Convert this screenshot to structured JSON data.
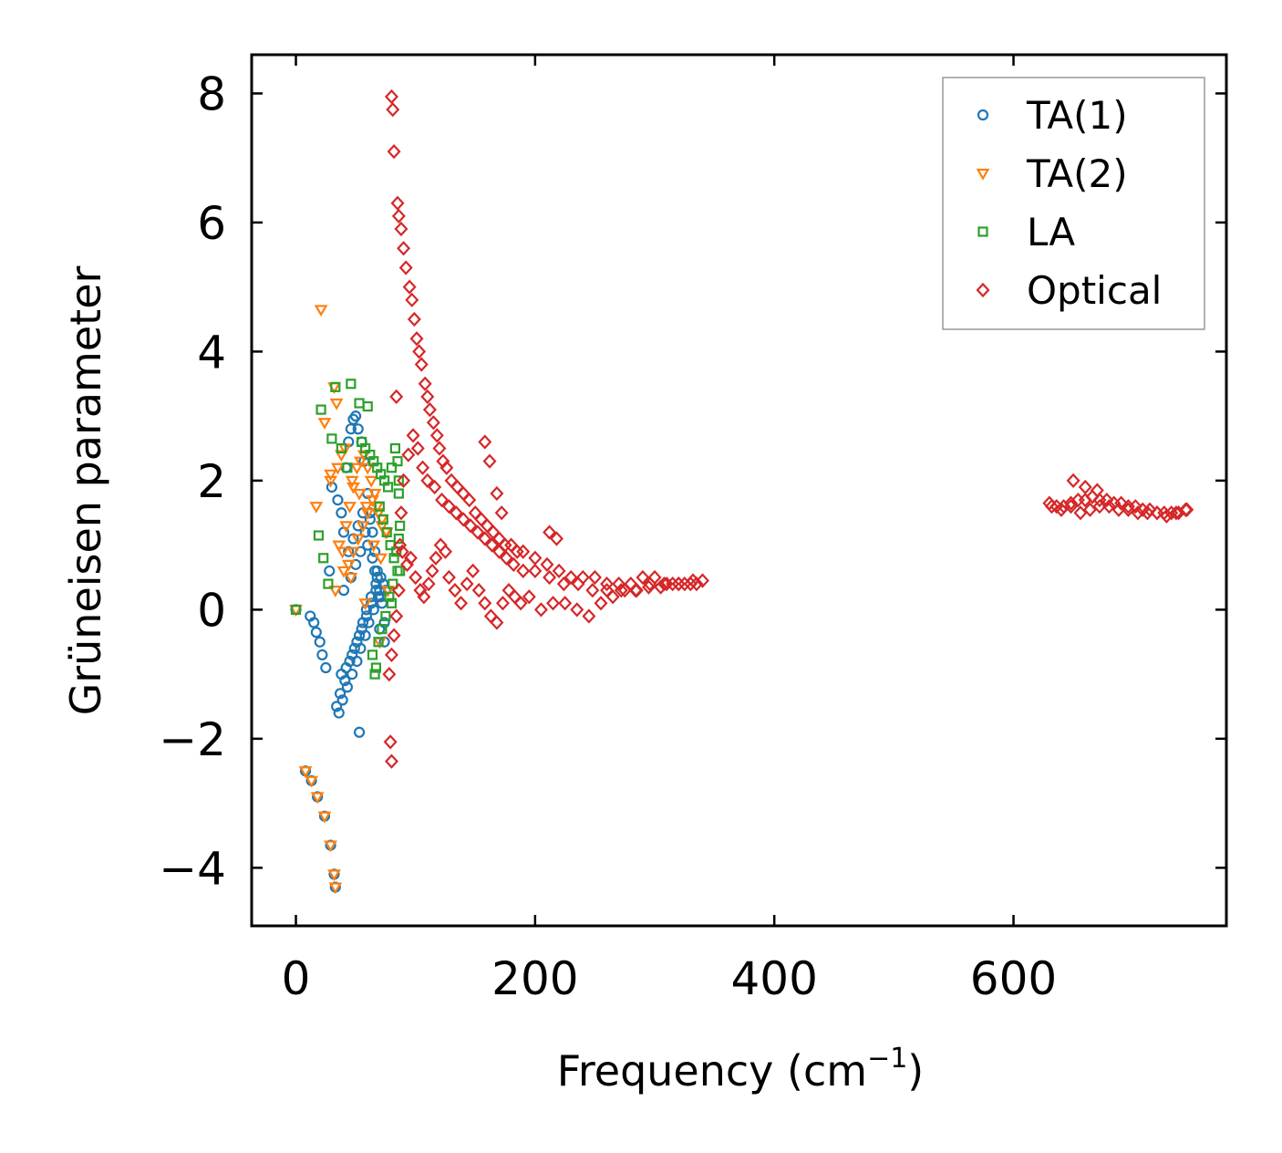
{
  "chart_data": {
    "type": "scatter",
    "title": "",
    "xlabel": "Frequency (cm",
    "xlabel_sup": "−1",
    "xlabel_close": ")",
    "ylabel": "Grüneisen parameter",
    "xlim": [
      -37,
      778
    ],
    "ylim": [
      -4.9,
      8.6
    ],
    "xticks": [
      0,
      200,
      400,
      600
    ],
    "xtick_labels": [
      "0",
      "200",
      "400",
      "600"
    ],
    "yticks": [
      -4,
      -2,
      0,
      2,
      4,
      6,
      8
    ],
    "ytick_labels": [
      "−4",
      "−2",
      "0",
      "2",
      "4",
      "6",
      "8"
    ],
    "legend_position": "top-right",
    "series": [
      {
        "name": "TA(1)",
        "marker": "circle",
        "color": "#1f77b4",
        "x": [
          0,
          8,
          13,
          18,
          24,
          29,
          32,
          33,
          12,
          15,
          17,
          20,
          22,
          25,
          28,
          30,
          35,
          38,
          40,
          42,
          44,
          46,
          48,
          50,
          52,
          55,
          57,
          60,
          62,
          64,
          66,
          68,
          70,
          72,
          74,
          34,
          37,
          41,
          45,
          49,
          53,
          56,
          59,
          63,
          67,
          71,
          75,
          36,
          39,
          43,
          47,
          51,
          54,
          58,
          61,
          65,
          69,
          73,
          44,
          48,
          52,
          56,
          60,
          64,
          68,
          40,
          46,
          50,
          54,
          58,
          62,
          66,
          70,
          74,
          38,
          42,
          47,
          51,
          55,
          59,
          63,
          67,
          71,
          53
        ],
        "y": [
          0.0,
          -2.5,
          -2.65,
          -2.9,
          -3.2,
          -3.65,
          -4.1,
          -4.3,
          -0.1,
          -0.2,
          -0.35,
          -0.5,
          -0.7,
          -0.9,
          0.6,
          1.9,
          1.7,
          1.5,
          1.2,
          2.2,
          2.6,
          2.8,
          2.95,
          3.0,
          2.8,
          2.6,
          2.3,
          1.8,
          1.5,
          1.2,
          0.9,
          0.6,
          0.3,
          0.1,
          -0.2,
          -1.5,
          -1.3,
          -1.1,
          -0.8,
          -0.6,
          -0.4,
          -0.2,
          0.0,
          0.2,
          0.4,
          0.5,
          0.3,
          -1.6,
          -1.4,
          -1.2,
          -1.0,
          -0.8,
          -0.6,
          -0.4,
          -0.2,
          0.0,
          0.2,
          0.4,
          0.9,
          1.1,
          1.3,
          1.5,
          1.0,
          0.8,
          0.5,
          0.3,
          0.5,
          0.7,
          0.9,
          1.2,
          1.4,
          0.6,
          -0.3,
          -0.5,
          -1.0,
          -0.9,
          -0.7,
          -0.5,
          -0.3,
          -0.1,
          0.1,
          0.3,
          0.2,
          -1.9
        ]
      },
      {
        "name": "TA(2)",
        "marker": "triangle-down",
        "color": "#ff7f0e",
        "x": [
          0,
          8,
          13,
          18,
          24,
          29,
          32,
          33,
          21,
          32,
          34,
          29,
          24,
          17,
          29,
          36,
          39,
          42,
          45,
          48,
          51,
          54,
          57,
          60,
          63,
          66,
          69,
          72,
          75,
          40,
          44,
          48,
          52,
          56,
          60,
          64,
          68,
          72,
          76,
          35,
          38,
          41,
          47,
          53,
          59,
          65,
          71,
          77,
          33,
          46,
          58,
          70
        ],
        "y": [
          0.0,
          -2.5,
          -2.65,
          -2.9,
          -3.2,
          -3.65,
          -4.1,
          -4.3,
          4.65,
          3.45,
          3.2,
          2.1,
          2.9,
          1.6,
          2.0,
          1.0,
          0.9,
          1.3,
          1.6,
          1.9,
          2.2,
          2.3,
          2.4,
          2.2,
          2.0,
          1.8,
          1.5,
          1.3,
          1.2,
          0.6,
          0.7,
          0.9,
          1.1,
          1.3,
          1.5,
          1.7,
          1.6,
          1.4,
          1.2,
          2.2,
          2.4,
          2.5,
          2.0,
          1.8,
          1.6,
          1.0,
          0.8,
          0.3,
          0.3,
          0.5,
          0.1,
          -0.5
        ]
      },
      {
        "name": "LA",
        "marker": "square",
        "color": "#2ca02c",
        "x": [
          0,
          33,
          46,
          21,
          30,
          53,
          60,
          38,
          43,
          19,
          23,
          27,
          55,
          58,
          62,
          65,
          68,
          71,
          74,
          77,
          80,
          83,
          85,
          86,
          87,
          70,
          73,
          76,
          79,
          82,
          84,
          86,
          64,
          67,
          72,
          78,
          81,
          85,
          87,
          66,
          69,
          75,
          80,
          86
        ],
        "y": [
          0.0,
          3.45,
          3.5,
          3.1,
          2.65,
          3.2,
          3.15,
          2.5,
          2.2,
          1.15,
          0.8,
          0.4,
          2.6,
          2.5,
          2.4,
          2.3,
          2.2,
          2.1,
          2.0,
          1.9,
          2.2,
          2.5,
          2.3,
          1.8,
          0.6,
          1.6,
          1.4,
          1.2,
          1.0,
          0.8,
          0.9,
          1.1,
          -0.7,
          -0.9,
          -0.3,
          0.2,
          0.4,
          0.6,
          1.3,
          -1.0,
          -0.5,
          -0.1,
          0.1,
          2.0
        ]
      },
      {
        "name": "Optical",
        "marker": "diamond",
        "color": "#d62728",
        "x": [
          80,
          81,
          82,
          85,
          86,
          88,
          90,
          92,
          95,
          97,
          99,
          101,
          103,
          105,
          108,
          110,
          112,
          115,
          118,
          120,
          123,
          126,
          130,
          135,
          140,
          145,
          150,
          155,
          160,
          165,
          170,
          175,
          180,
          185,
          190,
          200,
          210,
          220,
          230,
          240,
          250,
          260,
          270,
          280,
          290,
          300,
          310,
          320,
          330,
          340,
          87,
          89,
          93,
          96,
          100,
          104,
          107,
          111,
          114,
          117,
          121,
          125,
          128,
          133,
          138,
          143,
          148,
          153,
          158,
          163,
          168,
          173,
          178,
          183,
          188,
          195,
          205,
          215,
          225,
          235,
          245,
          255,
          265,
          275,
          285,
          295,
          305,
          315,
          325,
          335,
          78,
          80,
          82,
          84,
          86,
          88,
          90,
          94,
          98,
          102,
          106,
          110,
          116,
          122,
          128,
          134,
          140,
          146,
          152,
          158,
          164,
          170,
          176,
          182,
          190,
          200,
          212,
          224,
          236,
          248,
          260,
          272,
          284,
          296,
          308,
          320,
          332,
          158,
          162,
          168,
          172,
          212,
          218,
          84,
          79,
          80,
          630,
          636,
          642,
          648,
          654,
          660,
          666,
          672,
          678,
          684,
          690,
          696,
          702,
          708,
          714,
          720,
          726,
          732,
          738,
          745,
          632,
          640,
          648,
          656,
          664,
          672,
          680,
          688,
          696,
          704,
          712,
          720,
          728,
          736,
          744,
          650,
          660,
          670
        ],
        "y": [
          7.95,
          7.75,
          7.1,
          6.3,
          6.1,
          5.9,
          5.6,
          5.3,
          5.0,
          4.8,
          4.5,
          4.2,
          4.0,
          3.8,
          3.5,
          3.3,
          3.1,
          2.9,
          2.7,
          2.5,
          2.3,
          2.2,
          2.0,
          1.9,
          1.8,
          1.7,
          1.5,
          1.4,
          1.3,
          1.2,
          1.1,
          1.0,
          1.0,
          0.9,
          0.9,
          0.8,
          0.7,
          0.6,
          0.5,
          0.5,
          0.5,
          0.4,
          0.4,
          0.4,
          0.5,
          0.5,
          0.4,
          0.4,
          0.4,
          0.45,
          1.0,
          0.9,
          0.7,
          0.8,
          0.5,
          0.3,
          0.2,
          0.4,
          0.6,
          0.8,
          1.0,
          0.9,
          0.5,
          0.3,
          0.1,
          0.4,
          0.6,
          0.3,
          0.1,
          -0.1,
          -0.2,
          0.1,
          0.3,
          0.2,
          0.1,
          0.2,
          0.0,
          0.1,
          0.1,
          0.0,
          -0.1,
          0.1,
          0.2,
          0.3,
          0.3,
          0.35,
          0.35,
          0.4,
          0.4,
          0.4,
          -1.0,
          -0.7,
          -0.4,
          -0.1,
          0.3,
          1.5,
          2.0,
          2.4,
          2.7,
          2.5,
          2.2,
          2.0,
          1.9,
          1.7,
          1.6,
          1.5,
          1.4,
          1.3,
          1.2,
          1.1,
          1.0,
          0.9,
          0.8,
          0.7,
          0.6,
          0.6,
          0.5,
          0.4,
          0.4,
          0.3,
          0.3,
          0.3,
          0.3,
          0.4,
          0.4,
          0.4,
          0.45,
          2.6,
          2.3,
          1.8,
          1.5,
          1.2,
          1.1,
          3.3,
          -2.05,
          -2.35,
          1.65,
          1.6,
          1.6,
          1.65,
          1.7,
          1.7,
          1.75,
          1.7,
          1.7,
          1.65,
          1.65,
          1.6,
          1.6,
          1.55,
          1.55,
          1.5,
          1.5,
          1.5,
          1.5,
          1.55,
          1.6,
          1.55,
          1.6,
          1.5,
          1.55,
          1.6,
          1.6,
          1.55,
          1.55,
          1.5,
          1.5,
          1.5,
          1.45,
          1.5,
          1.55,
          2.0,
          1.9,
          1.85
        ]
      }
    ]
  }
}
